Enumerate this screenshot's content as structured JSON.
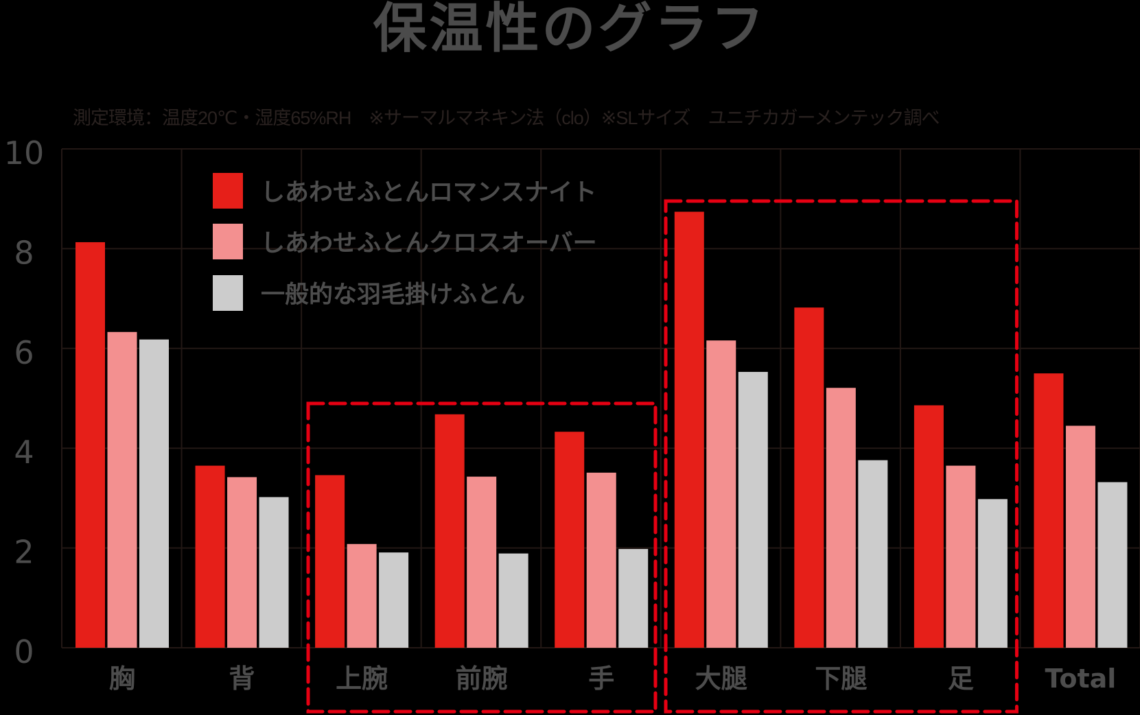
{
  "title": "保温性のグラフ",
  "subtitle": "測定環境：温度20℃・湿度65%RH　※サーマルマネキン法（clo）※SLサイズ　ユニチカガーメンテック調べ",
  "colors": {
    "background": "#000000",
    "grid": "#231815",
    "highlight_box": "#e60012",
    "text": "#4d4d4d"
  },
  "chart_data": {
    "type": "bar",
    "title": "保温性のグラフ",
    "subtitle": "測定環境：温度20℃・湿度65%RH　※サーマルマネキン法（clo）※SLサイズ　ユニチカガーメンテック調べ",
    "xlabel": "",
    "ylabel": "",
    "ylim": [
      0,
      10
    ],
    "yticks": [
      0,
      2,
      4,
      6,
      8,
      10
    ],
    "grid": true,
    "legend_position": "upper-left-inside",
    "categories": [
      "胸",
      "背",
      "上腕",
      "前腕",
      "手",
      "大腿",
      "下腿",
      "足",
      "Total"
    ],
    "series": [
      {
        "name": "しあわせふとんロマンスナイト",
        "color": "#e61f19",
        "values": [
          8.13,
          3.65,
          3.46,
          4.68,
          4.33,
          8.74,
          6.82,
          4.86,
          5.5
        ]
      },
      {
        "name": "しあわせふとんクロスオーバー",
        "color": "#f39090",
        "values": [
          6.33,
          3.42,
          2.08,
          3.43,
          3.51,
          6.16,
          5.21,
          3.65,
          4.45
        ]
      },
      {
        "name": "一般的な羽毛掛けふとん",
        "color": "#cccccc",
        "values": [
          6.18,
          3.02,
          1.91,
          1.89,
          1.98,
          5.53,
          3.76,
          2.98,
          3.32
        ]
      }
    ],
    "annotations": [
      {
        "type": "dashed-box",
        "covers": [
          "上腕",
          "前腕",
          "手"
        ],
        "color": "#e60012"
      },
      {
        "type": "dashed-box",
        "covers": [
          "大腿",
          "下腿",
          "足"
        ],
        "color": "#e60012"
      }
    ]
  }
}
